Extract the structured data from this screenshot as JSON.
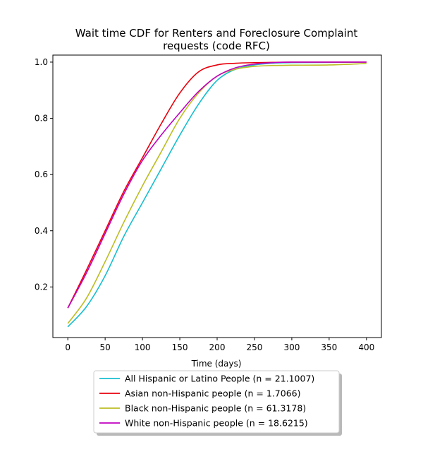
{
  "chart_data": {
    "type": "line",
    "title_lines": [
      "Wait time CDF for Renters and Foreclosure Complaint",
      "requests (code RFC)"
    ],
    "xlabel": "Time (days)",
    "ylabel": "",
    "xlim": [
      -20,
      420
    ],
    "ylim": [
      0.02,
      1.025
    ],
    "xticks": [
      0,
      50,
      100,
      150,
      200,
      250,
      300,
      350,
      400
    ],
    "yticks": [
      0.2,
      0.4,
      0.6,
      0.8,
      1.0
    ],
    "xtick_labels": [
      "0",
      "50",
      "100",
      "150",
      "200",
      "250",
      "300",
      "350",
      "400"
    ],
    "ytick_labels": [
      "0.2",
      "0.4",
      "0.6",
      "0.8",
      "1.0"
    ],
    "grid": false,
    "legend_position": "below",
    "x": [
      0,
      25,
      50,
      75,
      100,
      125,
      150,
      175,
      200,
      225,
      250,
      275,
      300,
      350,
      400
    ],
    "series": [
      {
        "name": "All Hispanic or Latino People (n = 21.1007)",
        "color": "#17becf",
        "values": [
          0.058,
          0.13,
          0.24,
          0.38,
          0.5,
          0.62,
          0.74,
          0.85,
          0.935,
          0.975,
          0.99,
          0.996,
          0.998,
          0.999,
          1.0
        ]
      },
      {
        "name": "Asian non-Hispanic people (n = 1.7066)",
        "color": "#e8000b",
        "values": [
          0.125,
          0.26,
          0.4,
          0.54,
          0.66,
          0.78,
          0.89,
          0.965,
          0.99,
          0.996,
          0.998,
          0.999,
          1.0,
          1.0,
          1.0
        ]
      },
      {
        "name": "Black non-Hispanic people (n = 61.3178)",
        "color": "#bcbd22",
        "values": [
          0.07,
          0.16,
          0.29,
          0.43,
          0.56,
          0.68,
          0.8,
          0.89,
          0.95,
          0.975,
          0.985,
          0.988,
          0.989,
          0.99,
          0.995
        ]
      },
      {
        "name": "White non-Hispanic people (n = 18.6215)",
        "color": "#c000c0",
        "values": [
          0.125,
          0.25,
          0.39,
          0.53,
          0.65,
          0.74,
          0.82,
          0.895,
          0.95,
          0.98,
          0.993,
          0.998,
          1.0,
          1.0,
          1.0
        ]
      }
    ]
  }
}
